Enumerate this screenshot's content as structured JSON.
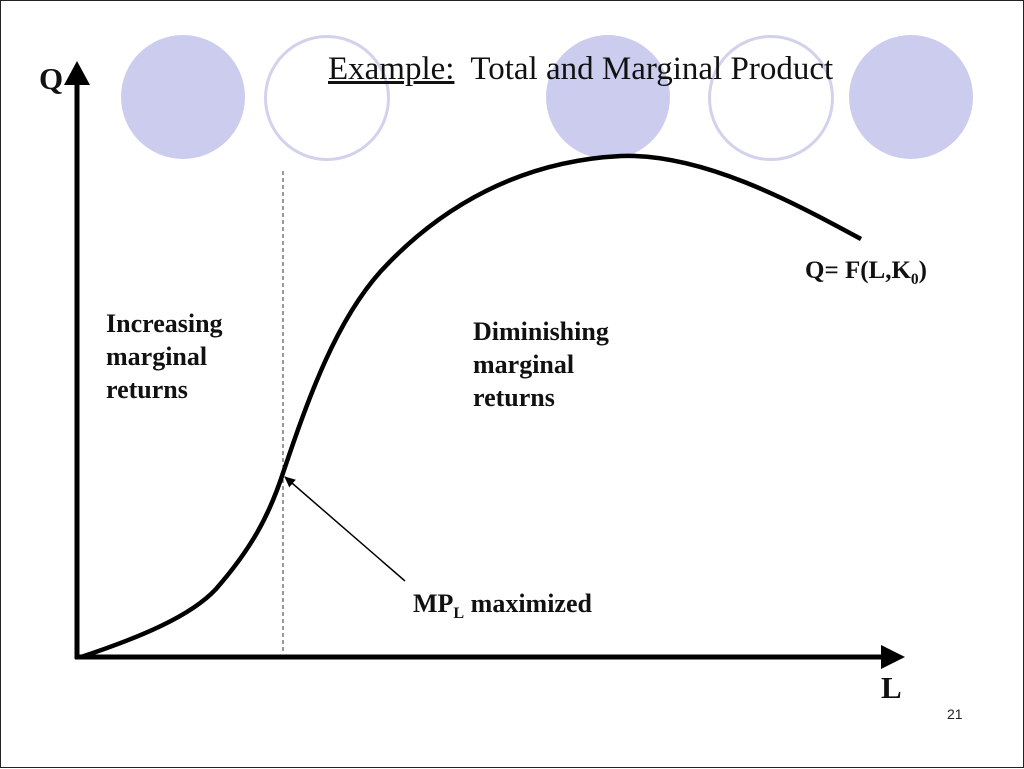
{
  "slide": {
    "title_prefix": "Example:",
    "title_rest": "  Total and Marginal Product",
    "page_number": "21",
    "circle_colors": {
      "filled": "#ccccee",
      "ring": "#d2d2ec"
    }
  },
  "chart_data": {
    "type": "line",
    "xlabel": "L",
    "ylabel": "Q",
    "axis_ticks": "none",
    "grid": false,
    "series": [
      {
        "name": "Q= F(L,K0)",
        "curve": "total product",
        "shape": "S-shaped: convex, inflection point, concave, then declining"
      }
    ],
    "curve_label": {
      "prefix": "Q= F(L,K",
      "subscript": "0",
      "suffix": ")"
    },
    "regions": [
      {
        "lines": [
          "Increasing",
          "marginal",
          "returns"
        ]
      },
      {
        "lines": [
          "Diminishing",
          "marginal",
          "returns"
        ]
      }
    ],
    "annotation": {
      "prefix": "MP",
      "subscript": "L",
      "suffix": " maximized",
      "points_to": "inflection point"
    },
    "reference_line": {
      "style": "dashed",
      "at": "inflection point"
    },
    "colors": {
      "axes": "#000000",
      "curve": "#000000"
    }
  }
}
